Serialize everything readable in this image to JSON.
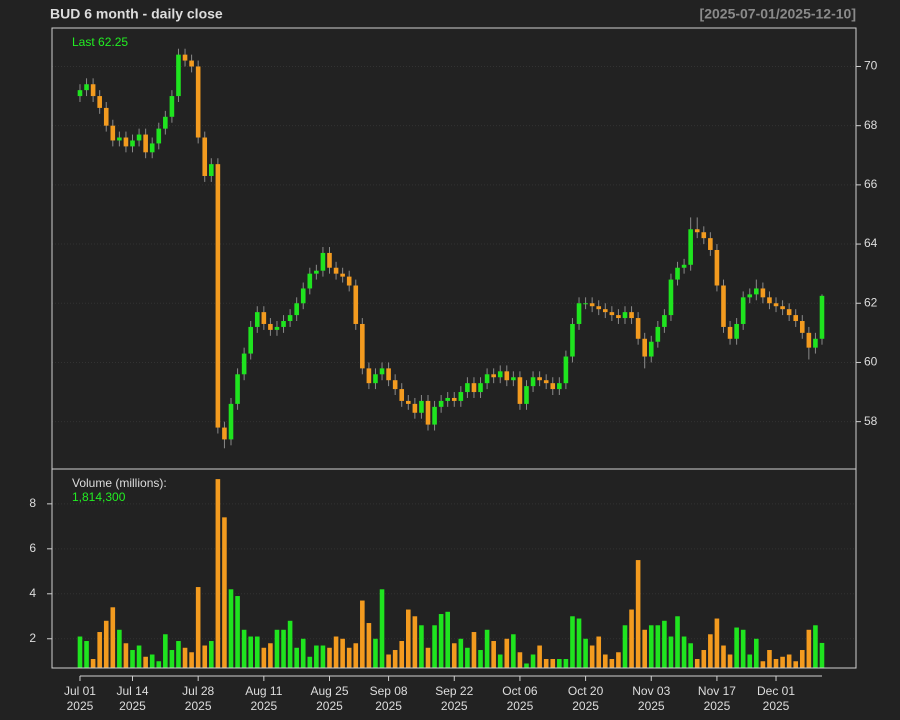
{
  "chart_data": [
    {
      "type": "candlestick",
      "title": "BUD  6 month - daily close",
      "subtitle": "[2025-07-01/2025-12-10]",
      "annotation": "Last 62.25",
      "open": [
        69.0,
        69.2,
        69.4,
        69.0,
        68.6,
        68.0,
        67.5,
        67.6,
        67.3,
        67.5,
        67.7,
        67.1,
        67.4,
        67.9,
        68.3,
        69.0,
        70.4,
        70.2,
        70.0,
        67.6,
        66.3,
        66.7,
        57.8,
        57.4,
        58.6,
        59.6,
        60.3,
        61.2,
        61.7,
        61.3,
        61.1,
        61.2,
        61.4,
        61.6,
        62.0,
        62.5,
        63.0,
        63.1,
        63.7,
        63.2,
        63.0,
        62.9,
        62.6,
        61.3,
        59.8,
        59.3,
        59.6,
        59.8,
        59.4,
        59.1,
        58.7,
        58.6,
        58.3,
        58.7,
        57.9,
        58.5,
        58.7,
        58.8,
        58.7,
        59.0,
        59.3,
        59.0,
        59.3,
        59.6,
        59.5,
        59.7,
        59.4,
        59.5,
        58.6,
        59.2,
        59.5,
        59.4,
        59.3,
        59.1,
        59.3,
        60.2,
        61.3,
        62.0,
        62.0,
        61.9,
        61.8,
        61.7,
        61.6,
        61.5,
        61.7,
        61.5,
        60.8,
        60.2,
        60.7,
        61.2,
        61.6,
        62.8,
        63.2,
        63.3,
        64.5,
        64.4,
        64.2,
        63.8,
        62.6,
        61.2,
        60.8,
        61.3,
        62.2,
        62.3,
        62.5,
        62.2,
        62.0,
        61.9,
        61.8,
        61.6,
        61.4,
        61.0,
        60.5,
        60.8
      ],
      "high": [
        69.4,
        69.6,
        69.6,
        69.2,
        68.8,
        68.2,
        67.8,
        67.8,
        67.7,
        67.9,
        67.9,
        67.6,
        68.1,
        68.5,
        69.2,
        70.6,
        70.6,
        70.4,
        70.2,
        67.8,
        66.9,
        66.9,
        58.0,
        58.8,
        59.8,
        60.5,
        61.4,
        61.9,
        61.9,
        61.5,
        61.4,
        61.6,
        61.8,
        62.2,
        62.7,
        63.2,
        63.3,
        63.9,
        63.9,
        63.4,
        63.2,
        63.1,
        62.8,
        61.5,
        60.0,
        59.8,
        60.0,
        60.0,
        59.6,
        59.3,
        58.9,
        58.8,
        58.9,
        58.9,
        58.7,
        58.9,
        59.0,
        59.0,
        59.2,
        59.5,
        59.5,
        59.5,
        59.8,
        59.8,
        59.9,
        59.9,
        59.7,
        59.7,
        59.4,
        59.7,
        59.7,
        59.6,
        59.5,
        59.5,
        60.4,
        61.5,
        62.2,
        62.2,
        62.2,
        62.1,
        62.0,
        61.9,
        61.8,
        61.9,
        61.9,
        61.7,
        61.0,
        60.9,
        61.4,
        61.8,
        63.0,
        63.4,
        63.5,
        64.9,
        64.9,
        64.6,
        64.4,
        64.0,
        62.8,
        61.4,
        61.5,
        62.4,
        62.5,
        62.8,
        62.7,
        62.4,
        62.2,
        62.1,
        62.0,
        61.8,
        61.6,
        61.2,
        61.0,
        62.3
      ],
      "low": [
        68.8,
        69.0,
        68.8,
        68.4,
        67.8,
        67.3,
        67.3,
        67.1,
        67.1,
        67.3,
        66.9,
        66.9,
        67.2,
        67.7,
        68.1,
        68.8,
        70.0,
        69.8,
        67.4,
        66.1,
        66.1,
        57.6,
        57.1,
        57.2,
        58.4,
        59.4,
        60.1,
        61.0,
        61.1,
        60.9,
        60.9,
        61.0,
        61.2,
        61.4,
        61.8,
        62.3,
        62.8,
        62.9,
        63.0,
        62.8,
        62.7,
        62.4,
        61.1,
        59.6,
        59.1,
        59.1,
        59.4,
        59.2,
        58.9,
        58.5,
        58.4,
        58.1,
        58.1,
        57.7,
        57.7,
        58.3,
        58.5,
        58.5,
        58.5,
        58.8,
        58.8,
        58.8,
        59.1,
        59.3,
        59.3,
        59.2,
        59.2,
        58.4,
        58.4,
        59.0,
        59.2,
        59.1,
        58.9,
        58.9,
        59.1,
        60.0,
        61.1,
        61.8,
        61.7,
        61.6,
        61.5,
        61.4,
        61.3,
        61.3,
        61.3,
        60.6,
        59.8,
        60.0,
        60.5,
        61.0,
        61.4,
        62.6,
        63.0,
        63.1,
        64.2,
        64.0,
        63.6,
        62.4,
        61.0,
        60.6,
        60.6,
        61.1,
        62.0,
        62.1,
        62.0,
        61.8,
        61.7,
        61.6,
        61.4,
        61.2,
        60.8,
        60.1,
        60.3,
        60.6
      ],
      "close": [
        69.2,
        69.4,
        69.0,
        68.6,
        68.0,
        67.5,
        67.6,
        67.3,
        67.5,
        67.7,
        67.1,
        67.4,
        67.9,
        68.3,
        69.0,
        70.4,
        70.2,
        70.0,
        67.6,
        66.3,
        66.7,
        57.8,
        57.4,
        58.6,
        59.6,
        60.3,
        61.2,
        61.7,
        61.3,
        61.1,
        61.2,
        61.4,
        61.6,
        62.0,
        62.5,
        63.0,
        63.1,
        63.7,
        63.2,
        63.0,
        62.9,
        62.6,
        61.3,
        59.8,
        59.3,
        59.6,
        59.8,
        59.4,
        59.1,
        58.7,
        58.6,
        58.3,
        58.7,
        57.9,
        58.5,
        58.7,
        58.8,
        58.7,
        59.0,
        59.3,
        59.0,
        59.3,
        59.6,
        59.5,
        59.7,
        59.4,
        59.5,
        58.6,
        59.2,
        59.5,
        59.4,
        59.3,
        59.1,
        59.3,
        60.2,
        61.3,
        62.0,
        62.0,
        61.9,
        61.8,
        61.7,
        61.6,
        61.5,
        61.7,
        61.5,
        60.8,
        60.2,
        60.7,
        61.2,
        61.6,
        62.8,
        63.2,
        63.3,
        64.5,
        64.4,
        64.2,
        63.8,
        62.6,
        61.2,
        60.8,
        61.3,
        62.2,
        62.3,
        62.5,
        62.2,
        62.0,
        61.9,
        61.8,
        61.6,
        61.4,
        61.0,
        60.5,
        60.8,
        62.25
      ],
      "up_color": "#1fe41f",
      "down_color": "#f39b1f",
      "xlim": [
        -4.26,
        118.18
      ],
      "xticks": [
        {
          "value": 0,
          "label": "Jul 01\n2025"
        },
        {
          "value": 8,
          "label": "Jul 14\n2025"
        },
        {
          "value": 18,
          "label": "Jul 28\n2025"
        },
        {
          "value": 28,
          "label": "Aug 11\n2025"
        },
        {
          "value": 38,
          "label": "Aug 25\n2025"
        },
        {
          "value": 47,
          "label": "Sep 08\n2025"
        },
        {
          "value": 57,
          "label": "Sep 22\n2025"
        },
        {
          "value": 67,
          "label": "Oct 06\n2025"
        },
        {
          "value": 77,
          "label": "Oct 20\n2025"
        },
        {
          "value": 87,
          "label": "Nov 03\n2025"
        },
        {
          "value": 97,
          "label": "Nov 17\n2025"
        },
        {
          "value": 106,
          "label": "Dec 01\n2025"
        }
      ],
      "ylim": [
        56.4,
        71.3
      ],
      "yticks": [
        58,
        60,
        62,
        64,
        66,
        68,
        70
      ],
      "grid": true
    },
    {
      "type": "bar",
      "annotation": "Volume (millions):",
      "annotation_value": "1,814,300",
      "values": [
        2.1,
        1.9,
        1.1,
        2.3,
        2.8,
        3.4,
        2.4,
        1.8,
        1.5,
        1.7,
        1.2,
        1.3,
        1.0,
        2.2,
        1.5,
        1.9,
        1.6,
        1.4,
        4.3,
        1.7,
        1.9,
        9.1,
        7.4,
        4.2,
        3.9,
        2.4,
        2.1,
        2.1,
        1.6,
        1.8,
        2.4,
        2.4,
        2.8,
        1.6,
        2.0,
        1.2,
        1.7,
        1.7,
        1.6,
        2.1,
        2.0,
        1.6,
        1.8,
        3.7,
        2.7,
        2.0,
        4.2,
        1.3,
        1.5,
        1.9,
        3.3,
        3.0,
        2.6,
        1.6,
        2.6,
        3.1,
        3.2,
        1.8,
        2.0,
        1.6,
        2.3,
        1.5,
        2.4,
        1.9,
        1.3,
        2.0,
        2.2,
        1.4,
        0.9,
        1.3,
        1.7,
        1.1,
        1.1,
        1.1,
        1.1,
        3.0,
        2.9,
        2.0,
        1.7,
        2.1,
        1.3,
        1.1,
        1.4,
        2.6,
        3.3,
        5.5,
        2.4,
        2.6,
        2.6,
        2.8,
        2.1,
        3.0,
        2.1,
        1.8,
        1.1,
        1.5,
        2.2,
        2.9,
        1.7,
        1.3,
        2.5,
        2.4,
        1.3,
        2.0,
        1.0,
        1.5,
        1.1,
        1.2,
        1.3,
        1.0,
        1.5,
        2.4,
        2.6,
        1.8143
      ],
      "xlim": [
        -4.26,
        118.18
      ],
      "ylim": [
        0.7,
        9.55
      ],
      "yticks": [
        2,
        4,
        6,
        8
      ],
      "grid": true
    }
  ]
}
